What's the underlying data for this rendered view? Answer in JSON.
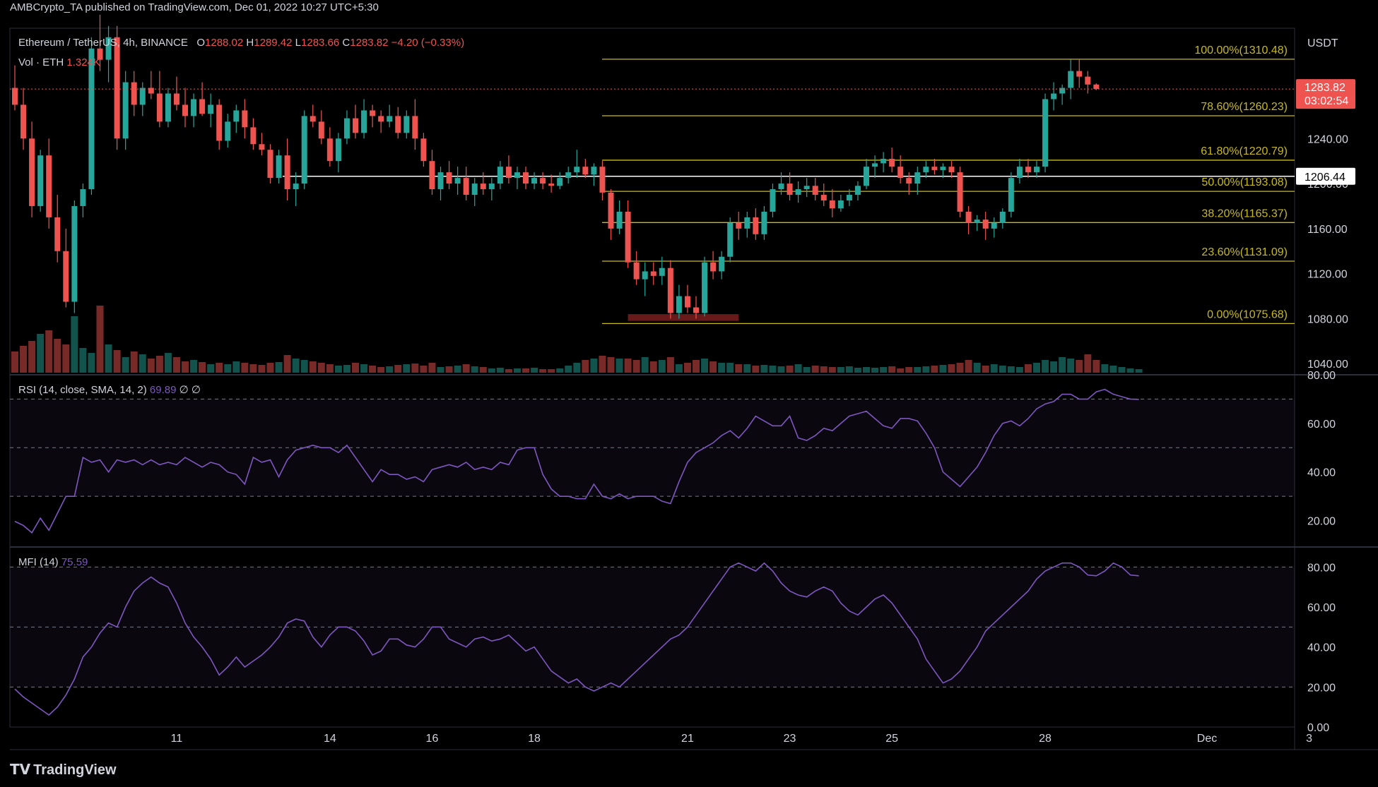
{
  "header": {
    "publisher_line": "AMBCrypto_TA published on TradingView.com, Dec 01, 2022 10:27 UTC+5:30"
  },
  "legend": {
    "symbol": "Ethereum / TetherUS, 4h, BINANCE",
    "o_label": "O",
    "o_value": "1288.02",
    "h_label": "H",
    "h_value": "1289.42",
    "l_label": "L",
    "l_value": "1283.66",
    "c_label": "C",
    "c_value": "1283.82",
    "change": "−4.20 (−0.33%)",
    "vol_label": "Vol · ETH",
    "vol_value": "1.324K"
  },
  "rsi_legend": {
    "label": "RSI (14, close, SMA, 14, 2)",
    "value": "69.89",
    "extra": "∅ ∅"
  },
  "mfi_legend": {
    "label": "MFI (14)",
    "value": "75.59"
  },
  "currency": "USDT",
  "price_badge": {
    "price": "1283.82",
    "countdown": "03:02:54"
  },
  "hline_badge": "1206.44",
  "branding": "TradingView",
  "colors": {
    "up": "#26a69a",
    "down": "#ef5350",
    "fib": "#c9b91e",
    "rsi": "#7e57c2",
    "bg": "#000000",
    "grid": "#2a2e39"
  },
  "chart_data": {
    "type": "candlestick",
    "title": "Ethereum / TetherUS, 4h, BINANCE",
    "price_axis": {
      "ticks": [
        1040,
        1080,
        1120,
        1160,
        1200,
        1240
      ],
      "ylim": [
        1032,
        1338
      ]
    },
    "x_ticks": [
      "11",
      "14",
      "16",
      "18",
      "21",
      "23",
      "25",
      "28",
      "Dec",
      "3"
    ],
    "x_tick_bar_index": [
      19,
      37,
      49,
      61,
      79,
      91,
      103,
      121,
      140,
      152
    ],
    "fib_levels": [
      {
        "label": "100.00%(1310.48)",
        "value": 1310.48
      },
      {
        "label": "78.60%(1260.23)",
        "value": 1260.23
      },
      {
        "label": "61.80%(1220.79)",
        "value": 1220.79
      },
      {
        "label": "50.00%(1193.08)",
        "value": 1193.08
      },
      {
        "label": "38.20%(1165.37)",
        "value": 1165.37
      },
      {
        "label": "23.60%(1131.09)",
        "value": 1131.09
      },
      {
        "label": "0.00%(1075.68)",
        "value": 1075.68
      }
    ],
    "horizontal_line": 1206.44,
    "support_zone": {
      "from": 1078,
      "to": 1084,
      "bar_from": 72,
      "bar_to": 85
    },
    "candles": [
      [
        1285,
        1305,
        1265,
        1270
      ],
      [
        1270,
        1285,
        1230,
        1240
      ],
      [
        1240,
        1255,
        1170,
        1180
      ],
      [
        1180,
        1230,
        1175,
        1225
      ],
      [
        1225,
        1240,
        1160,
        1170
      ],
      [
        1170,
        1190,
        1130,
        1140
      ],
      [
        1140,
        1160,
        1090,
        1095
      ],
      [
        1095,
        1185,
        1085,
        1180
      ],
      [
        1180,
        1200,
        1170,
        1195
      ],
      [
        1195,
        1330,
        1190,
        1320
      ],
      [
        1320,
        1350,
        1300,
        1310
      ],
      [
        1310,
        1340,
        1290,
        1330
      ],
      [
        1330,
        1340,
        1230,
        1240
      ],
      [
        1240,
        1300,
        1230,
        1290
      ],
      [
        1290,
        1300,
        1260,
        1270
      ],
      [
        1270,
        1290,
        1260,
        1285
      ],
      [
        1285,
        1300,
        1275,
        1280
      ],
      [
        1280,
        1300,
        1250,
        1255
      ],
      [
        1255,
        1285,
        1250,
        1280
      ],
      [
        1280,
        1295,
        1265,
        1270
      ],
      [
        1270,
        1285,
        1250,
        1260
      ],
      [
        1260,
        1280,
        1250,
        1275
      ],
      [
        1275,
        1290,
        1260,
        1262
      ],
      [
        1262,
        1280,
        1250,
        1270
      ],
      [
        1270,
        1275,
        1230,
        1238
      ],
      [
        1238,
        1262,
        1232,
        1255
      ],
      [
        1255,
        1270,
        1245,
        1265
      ],
      [
        1265,
        1275,
        1240,
        1250
      ],
      [
        1250,
        1258,
        1230,
        1235
      ],
      [
        1235,
        1245,
        1225,
        1230
      ],
      [
        1230,
        1235,
        1200,
        1205
      ],
      [
        1205,
        1230,
        1200,
        1225
      ],
      [
        1225,
        1240,
        1185,
        1195
      ],
      [
        1195,
        1210,
        1180,
        1200
      ],
      [
        1200,
        1265,
        1195,
        1260
      ],
      [
        1260,
        1270,
        1250,
        1255
      ],
      [
        1255,
        1265,
        1235,
        1240
      ],
      [
        1240,
        1250,
        1215,
        1220
      ],
      [
        1220,
        1245,
        1210,
        1240
      ],
      [
        1240,
        1265,
        1235,
        1258
      ],
      [
        1258,
        1270,
        1240,
        1245
      ],
      [
        1245,
        1275,
        1240,
        1265
      ],
      [
        1265,
        1270,
        1250,
        1260
      ],
      [
        1260,
        1265,
        1245,
        1255
      ],
      [
        1255,
        1270,
        1250,
        1260
      ],
      [
        1260,
        1268,
        1240,
        1245
      ],
      [
        1245,
        1265,
        1240,
        1260
      ],
      [
        1260,
        1275,
        1230,
        1240
      ],
      [
        1240,
        1245,
        1215,
        1220
      ],
      [
        1220,
        1230,
        1190,
        1195
      ],
      [
        1195,
        1215,
        1185,
        1210
      ],
      [
        1210,
        1220,
        1195,
        1200
      ],
      [
        1200,
        1215,
        1190,
        1205
      ],
      [
        1205,
        1215,
        1185,
        1190
      ],
      [
        1190,
        1205,
        1180,
        1200
      ],
      [
        1200,
        1210,
        1190,
        1195
      ],
      [
        1195,
        1205,
        1185,
        1200
      ],
      [
        1200,
        1220,
        1195,
        1215
      ],
      [
        1215,
        1225,
        1200,
        1205
      ],
      [
        1205,
        1215,
        1195,
        1210
      ],
      [
        1210,
        1215,
        1195,
        1200
      ],
      [
        1200,
        1210,
        1195,
        1205
      ],
      [
        1205,
        1210,
        1195,
        1200
      ],
      [
        1200,
        1208,
        1192,
        1198
      ],
      [
        1198,
        1210,
        1195,
        1205
      ],
      [
        1205,
        1215,
        1200,
        1210
      ],
      [
        1210,
        1230,
        1205,
        1215
      ],
      [
        1215,
        1222,
        1205,
        1208
      ],
      [
        1208,
        1218,
        1198,
        1215
      ],
      [
        1215,
        1220,
        1185,
        1192
      ],
      [
        1192,
        1195,
        1150,
        1160
      ],
      [
        1160,
        1185,
        1155,
        1175
      ],
      [
        1175,
        1185,
        1125,
        1130
      ],
      [
        1130,
        1140,
        1110,
        1115
      ],
      [
        1115,
        1130,
        1100,
        1122
      ],
      [
        1122,
        1130,
        1110,
        1118
      ],
      [
        1118,
        1135,
        1110,
        1125
      ],
      [
        1125,
        1132,
        1080,
        1085
      ],
      [
        1085,
        1110,
        1080,
        1100
      ],
      [
        1100,
        1110,
        1085,
        1090
      ],
      [
        1090,
        1100,
        1080,
        1085
      ],
      [
        1085,
        1135,
        1082,
        1130
      ],
      [
        1130,
        1140,
        1115,
        1122
      ],
      [
        1122,
        1140,
        1115,
        1135
      ],
      [
        1135,
        1170,
        1130,
        1165
      ],
      [
        1165,
        1175,
        1150,
        1160
      ],
      [
        1160,
        1175,
        1152,
        1170
      ],
      [
        1170,
        1178,
        1150,
        1155
      ],
      [
        1155,
        1180,
        1150,
        1175
      ],
      [
        1175,
        1200,
        1170,
        1195
      ],
      [
        1195,
        1210,
        1190,
        1200
      ],
      [
        1200,
        1210,
        1185,
        1190
      ],
      [
        1190,
        1202,
        1183,
        1195
      ],
      [
        1195,
        1205,
        1188,
        1198
      ],
      [
        1198,
        1205,
        1185,
        1190
      ],
      [
        1190,
        1200,
        1180,
        1185
      ],
      [
        1185,
        1195,
        1170,
        1178
      ],
      [
        1178,
        1190,
        1175,
        1185
      ],
      [
        1185,
        1195,
        1180,
        1190
      ],
      [
        1190,
        1202,
        1185,
        1198
      ],
      [
        1198,
        1222,
        1195,
        1215
      ],
      [
        1215,
        1225,
        1205,
        1218
      ],
      [
        1218,
        1228,
        1210,
        1222
      ],
      [
        1222,
        1232,
        1210,
        1215
      ],
      [
        1215,
        1225,
        1200,
        1205
      ],
      [
        1205,
        1210,
        1190,
        1200
      ],
      [
        1200,
        1215,
        1190,
        1210
      ],
      [
        1210,
        1220,
        1205,
        1215
      ],
      [
        1215,
        1222,
        1208,
        1212
      ],
      [
        1212,
        1218,
        1205,
        1215
      ],
      [
        1215,
        1220,
        1205,
        1210
      ],
      [
        1210,
        1215,
        1170,
        1175
      ],
      [
        1175,
        1180,
        1155,
        1165
      ],
      [
        1165,
        1172,
        1158,
        1168
      ],
      [
        1168,
        1175,
        1150,
        1160
      ],
      [
        1160,
        1170,
        1152,
        1165
      ],
      [
        1165,
        1178,
        1160,
        1175
      ],
      [
        1175,
        1210,
        1170,
        1205
      ],
      [
        1205,
        1222,
        1200,
        1215
      ],
      [
        1215,
        1222,
        1205,
        1210
      ],
      [
        1210,
        1220,
        1205,
        1215
      ],
      [
        1215,
        1280,
        1210,
        1275
      ],
      [
        1275,
        1290,
        1265,
        1280
      ],
      [
        1280,
        1288,
        1270,
        1285
      ],
      [
        1285,
        1310,
        1275,
        1300
      ],
      [
        1300,
        1310,
        1285,
        1295
      ],
      [
        1295,
        1300,
        1280,
        1288
      ],
      [
        1288,
        1289,
        1283,
        1284
      ]
    ],
    "volume": [
      30,
      38,
      45,
      55,
      60,
      48,
      40,
      80,
      35,
      28,
      95,
      40,
      32,
      22,
      30,
      26,
      20,
      24,
      28,
      22,
      16,
      18,
      15,
      12,
      14,
      12,
      16,
      14,
      12,
      11,
      14,
      15,
      25,
      20,
      18,
      16,
      14,
      12,
      10,
      11,
      14,
      12,
      10,
      8,
      9,
      11,
      12,
      13,
      10,
      14,
      8,
      9,
      10,
      12,
      9,
      8,
      6,
      7,
      5,
      6,
      6,
      7,
      5,
      5,
      6,
      10,
      14,
      18,
      20,
      24,
      22,
      20,
      20,
      18,
      22,
      16,
      18,
      22,
      12,
      14,
      18,
      20,
      16,
      14,
      14,
      12,
      12,
      10,
      11,
      10,
      9,
      10,
      12,
      8,
      10,
      9,
      8,
      8,
      9,
      7,
      8,
      7,
      8,
      9,
      6,
      8,
      8,
      9,
      10,
      11,
      12,
      14,
      18,
      14,
      10,
      12,
      10,
      9,
      8,
      12,
      14,
      18,
      16,
      22,
      20,
      18,
      26,
      18,
      12,
      10,
      8,
      6,
      5
    ],
    "rsi": {
      "ylim": [
        10,
        80
      ],
      "ticks": [
        20,
        40,
        60,
        80
      ],
      "bands": [
        30,
        50,
        70
      ],
      "last": 69.89,
      "values": [
        19.7,
        18,
        15,
        21,
        16,
        23,
        30,
        30,
        46,
        44,
        45,
        40,
        45,
        44,
        45,
        43,
        45,
        43,
        44,
        43,
        46,
        44,
        42,
        44,
        43,
        40,
        39,
        35,
        46,
        44,
        45,
        38,
        45,
        49,
        50,
        51,
        50,
        50,
        48,
        51,
        46,
        41,
        36,
        41,
        39,
        39,
        37,
        38,
        36,
        41,
        42,
        43,
        42,
        44,
        41,
        42,
        41,
        44,
        43,
        49,
        50,
        50,
        39,
        33,
        30,
        30,
        29,
        29,
        35,
        30,
        29,
        31,
        29,
        30,
        30,
        30,
        28,
        27,
        36,
        44,
        48,
        50,
        52,
        55,
        57,
        54,
        58,
        63,
        61,
        59,
        59,
        63,
        54,
        53,
        55,
        58,
        57,
        60,
        63,
        64,
        65,
        62,
        59,
        58,
        62,
        62,
        61,
        56,
        50,
        40,
        37,
        34,
        38,
        42,
        48,
        55,
        60,
        61,
        59,
        62,
        66,
        68,
        69,
        72,
        72,
        70,
        70,
        73,
        74,
        72,
        71,
        70,
        69.89
      ]
    },
    "mfi": {
      "ylim": [
        0,
        90
      ],
      "ticks": [
        0,
        20,
        40,
        60,
        80
      ],
      "bands": [
        20,
        50,
        80
      ],
      "last": 75.59,
      "values": [
        19,
        15,
        12,
        9,
        6,
        10,
        16,
        24,
        35,
        40,
        47,
        52,
        50,
        60,
        68,
        72,
        75,
        72,
        70,
        62,
        52,
        45,
        40,
        34,
        26,
        30,
        35,
        30,
        33,
        36,
        40,
        45,
        52,
        54,
        53,
        45,
        40,
        46,
        50,
        50,
        48,
        43,
        36,
        38,
        44,
        44,
        41,
        40,
        44,
        50,
        50,
        44,
        42,
        40,
        44,
        45,
        43,
        44,
        46,
        42,
        38,
        40,
        34,
        28,
        25,
        22,
        24,
        20,
        18,
        20,
        22,
        20,
        24,
        28,
        32,
        36,
        40,
        44,
        46,
        50,
        56,
        62,
        68,
        74,
        80,
        82,
        80,
        78,
        82,
        78,
        72,
        68,
        66,
        65,
        68,
        70,
        68,
        62,
        58,
        56,
        60,
        64,
        66,
        62,
        56,
        50,
        44,
        34,
        28,
        22,
        24,
        28,
        34,
        40,
        48,
        52,
        56,
        60,
        64,
        68,
        74,
        78,
        80,
        82,
        82,
        80,
        76,
        75.59,
        78,
        82,
        80,
        76,
        75.59
      ]
    }
  }
}
